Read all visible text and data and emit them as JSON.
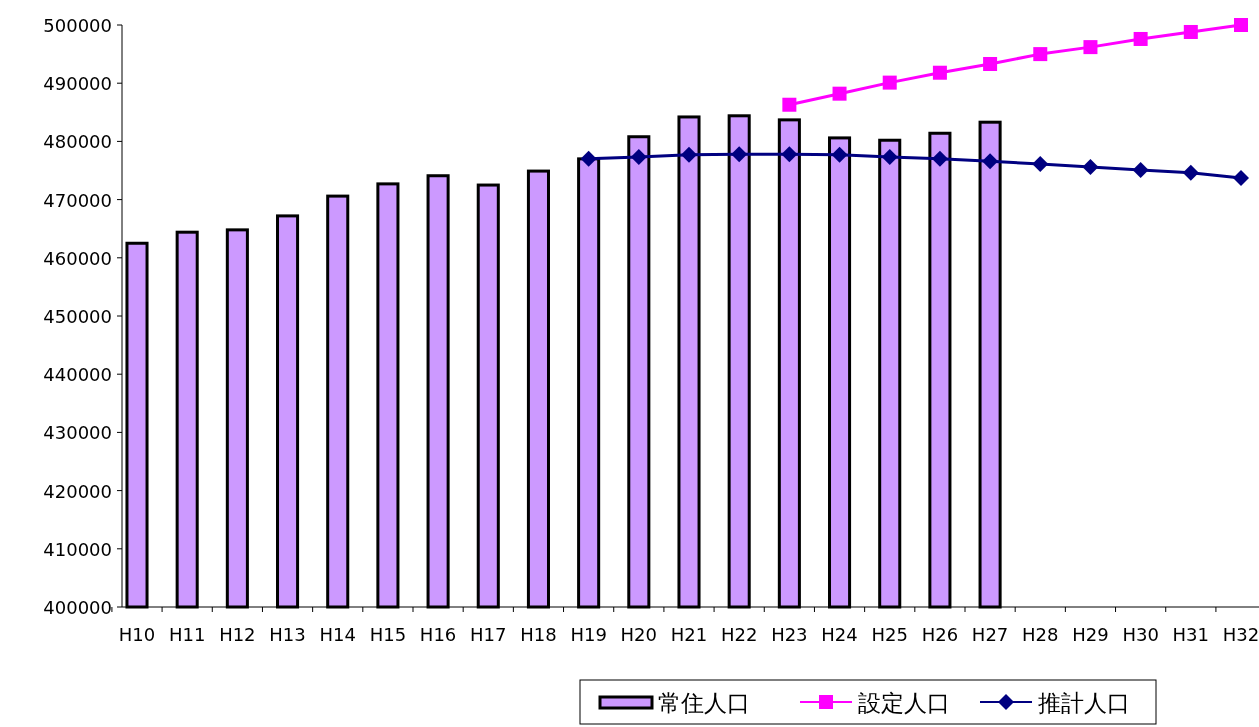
{
  "chart_data": {
    "type": "bar",
    "categories": [
      "H10",
      "H11",
      "H12",
      "H13",
      "H14",
      "H15",
      "H16",
      "H17",
      "H18",
      "H19",
      "H20",
      "H21",
      "H22",
      "H23",
      "H24",
      "H25",
      "H26",
      "H27",
      "H28",
      "H29",
      "H30",
      "H31",
      "H32"
    ],
    "series": [
      {
        "name": "常住人口",
        "color": "#cc99ff",
        "values": [
          462500,
          464400,
          464800,
          467200,
          470600,
          472700,
          474100,
          472500,
          474900,
          477000,
          480800,
          484200,
          484400,
          483700,
          480600,
          480200,
          481400,
          483300,
          null,
          null,
          null,
          null,
          null
        ]
      },
      {
        "name": "設定人口",
        "type": "line",
        "color": "#ff00ff",
        "marker": "square",
        "values": [
          null,
          null,
          null,
          null,
          null,
          null,
          null,
          null,
          null,
          null,
          null,
          null,
          null,
          486300,
          488200,
          490100,
          491800,
          493300,
          495000,
          496200,
          497600,
          498800,
          500000
        ]
      },
      {
        "name": "推計人口",
        "type": "line",
        "color": "#000080",
        "marker": "diamond",
        "values": [
          null,
          null,
          null,
          null,
          null,
          null,
          null,
          null,
          null,
          477000,
          477300,
          477700,
          477800,
          477800,
          477700,
          477300,
          477000,
          476600,
          476100,
          475600,
          475100,
          474600,
          473700
        ]
      }
    ],
    "ylim": [
      400000,
      500000
    ],
    "yticks": [
      400000,
      410000,
      420000,
      430000,
      440000,
      450000,
      460000,
      470000,
      480000,
      490000,
      500000
    ],
    "grid": false,
    "legend": "bottom"
  }
}
